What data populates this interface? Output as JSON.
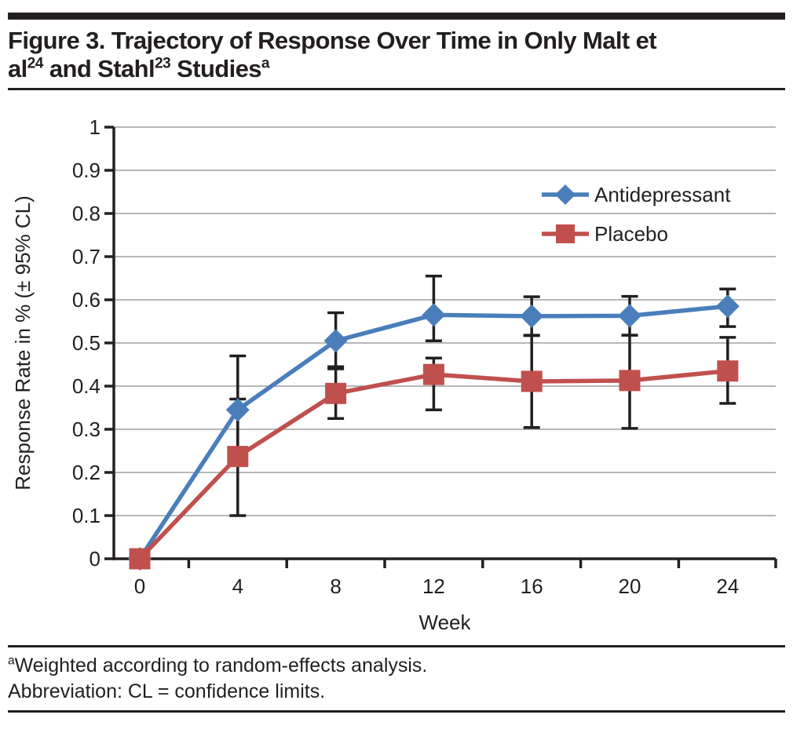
{
  "page": {
    "title_segments": [
      {
        "t": "Figure 3. Trajectory of Response Over Time in Only Malt et"
      },
      {
        "br": true
      },
      {
        "t": "al"
      },
      {
        "t": "24",
        "sup": true
      },
      {
        "t": " and Stahl"
      },
      {
        "t": "23",
        "sup": true
      },
      {
        "t": " Studies"
      },
      {
        "t": "a",
        "sup": true
      }
    ],
    "footnote_line1_segments": [
      {
        "t": "a",
        "sup": true
      },
      {
        "t": "Weighted according to random-effects analysis."
      }
    ],
    "footnote_line2": "Abbreviation: CL = confidence limits."
  },
  "colors": {
    "ink": "#231f20",
    "gridline": "#9d9fa2",
    "antidepressant_blue": "#4a7ebb",
    "placebo_red": "#c0504d"
  },
  "chart_data": {
    "type": "line",
    "title": "",
    "xlabel": "Week",
    "ylabel": "Response Rate in % (± 95% CL)",
    "x": [
      0,
      4,
      8,
      12,
      16,
      20,
      24
    ],
    "x_tick_labels": [
      "0",
      "4",
      "8",
      "12",
      "16",
      "20",
      "24"
    ],
    "y_ticks": [
      0,
      0.1,
      0.2,
      0.3,
      0.4,
      0.5,
      0.6,
      0.7,
      0.8,
      0.9,
      1
    ],
    "y_tick_labels": [
      "0",
      "0.1",
      "0.2",
      "0.3",
      "0.4",
      "0.5",
      "0.6",
      "0.7",
      "0.8",
      "0.9",
      "1"
    ],
    "ylim": [
      0,
      1
    ],
    "grid": "horizontal",
    "legend_position": "inside-top-right",
    "error_bars": "plus-minus 95% confidence limits, black with caps",
    "series": [
      {
        "name": "Antidepressant",
        "color": "#4a7ebb",
        "marker": "diamond",
        "values": [
          0,
          0.345,
          0.505,
          0.565,
          0.562,
          0.563,
          0.585
        ],
        "ci_lower": [
          null,
          0.22,
          0.445,
          0.505,
          0.517,
          0.518,
          0.538
        ],
        "ci_upper": [
          null,
          0.47,
          0.57,
          0.655,
          0.607,
          0.608,
          0.625
        ]
      },
      {
        "name": "Placebo",
        "color": "#c0504d",
        "marker": "square",
        "values": [
          0,
          0.237,
          0.383,
          0.427,
          0.411,
          0.413,
          0.435
        ],
        "ci_lower": [
          null,
          0.1,
          0.325,
          0.345,
          0.304,
          0.302,
          0.36
        ],
        "ci_upper": [
          null,
          0.37,
          0.44,
          0.465,
          0.518,
          0.518,
          0.513
        ]
      }
    ]
  }
}
